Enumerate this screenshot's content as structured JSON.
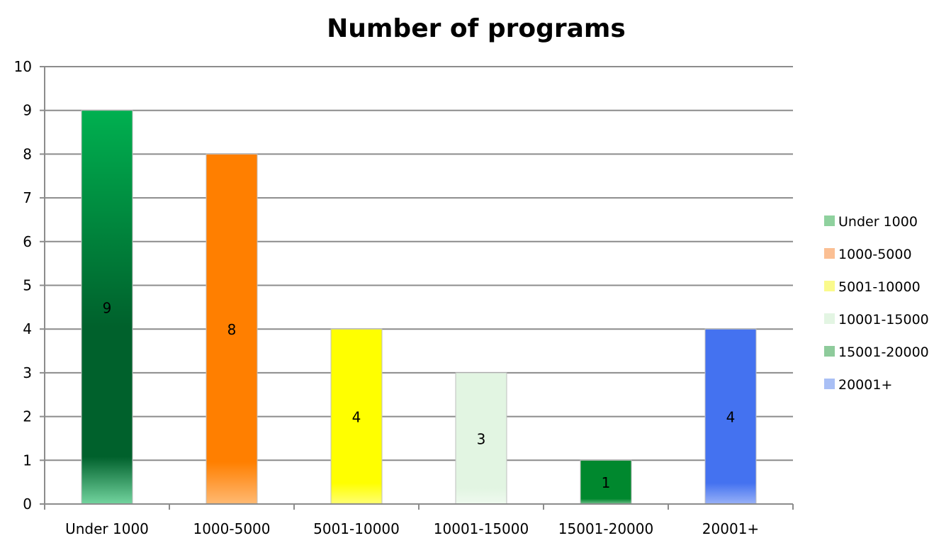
{
  "chart_data": {
    "type": "bar",
    "title": "Number of programs",
    "xlabel": "",
    "ylabel": "",
    "categories": [
      "Under 1000",
      "1000-5000",
      "5001-10000",
      "10001-15000",
      "15001-20000",
      "20001+"
    ],
    "values": [
      9,
      8,
      4,
      3,
      1,
      4
    ],
    "data_labels": [
      "9",
      "8",
      "4",
      "3",
      "1",
      "4"
    ],
    "ylim": [
      0,
      10
    ],
    "yticks": [
      "0",
      "1",
      "2",
      "3",
      "4",
      "5",
      "6",
      "7",
      "8",
      "9",
      "10"
    ],
    "grid": true,
    "legend_position": "right",
    "legend": [
      "Under 1000",
      "1000-5000",
      "5001-10000",
      "10001-15000",
      "15001-20000",
      "20001+"
    ],
    "bar_colors": [
      "#00b050",
      "#ff7f00",
      "#ffff00",
      "#e2f5e2",
      "#00882e",
      "#4472f0"
    ],
    "legend_colors": [
      "#8fd19e",
      "#fbbf93",
      "#fafa8c",
      "#e3f5e3",
      "#8ecb9b",
      "#a9bff5"
    ]
  }
}
